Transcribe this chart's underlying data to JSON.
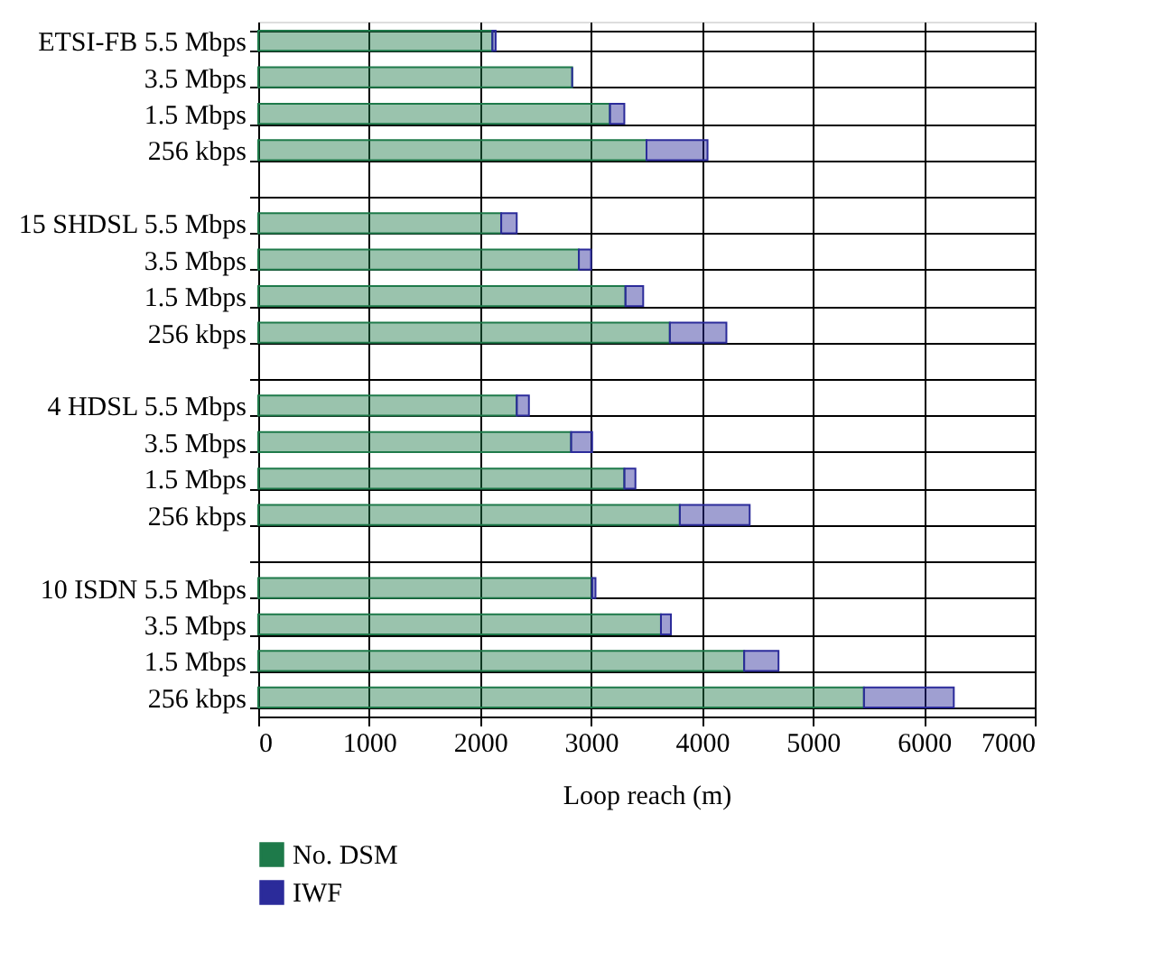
{
  "chart_data": {
    "type": "bar",
    "orientation": "horizontal",
    "stacked": true,
    "categories": [
      "ETSI-FB  5.5 Mbps",
      "3.5 Mbps",
      "1.5 Mbps",
      "256 kbps",
      null,
      "15 SHDSL  5.5 Mbps",
      "3.5 Mbps",
      "1.5 Mbps",
      "256 kbps",
      null,
      "4 HDSL   5.5 Mbps",
      "3.5 Mbps",
      "1.5 Mbps",
      "256 kbps",
      null,
      "10 ISDN  5.5 Mbps",
      "3.5 Mbps",
      "1.5 Mbps",
      "256 kbps"
    ],
    "series": [
      {
        "name": "No. DSM",
        "color": "#1e7a4a",
        "values": [
          2110,
          2830,
          3170,
          3500,
          null,
          2190,
          2890,
          3310,
          3710,
          null,
          2330,
          2820,
          3300,
          3800,
          null,
          3010,
          3630,
          4380,
          5460
        ]
      },
      {
        "name": "IWF",
        "color": "#2b2b9a",
        "values": [
          30,
          0,
          130,
          550,
          null,
          140,
          110,
          160,
          510,
          null,
          110,
          190,
          100,
          630,
          null,
          30,
          90,
          310,
          810
        ]
      }
    ],
    "xlabel": "Loop reach (m)",
    "xlim": [
      0,
      7000
    ],
    "xticks": [
      0,
      1000,
      2000,
      3000,
      4000,
      5000,
      6000,
      7000
    ],
    "grid": true,
    "legend": "bottom"
  }
}
